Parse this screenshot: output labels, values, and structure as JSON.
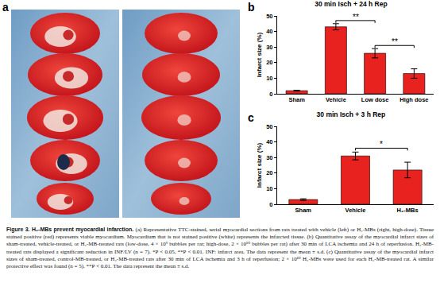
{
  "panel_labels": [
    "a",
    "b",
    "c"
  ],
  "caption": {
    "label": "Figure 3.",
    "title": "H₂-MBs prevent myocardial infarction.",
    "text": "(a) Representative TTC-stained, serial myocardial sections from rats treated with vehicle (left) or H₂-MBs (right, high-dose). Tissue stained positive (red) represents viable myocardium. Myocardium that is not stained positive (white) represents the infarcted tissue. (b) Quantitative assay of the myocardial infarct sizes of sham-treated, vehicle-treated, or H₂-MB-treated rats (low-dose, 4 × 10⁹ bubbles per rat; high-dose, 2 × 10¹⁰ bubbles per rat) after 30 min of LCA ischemia and 24 h of reperfusion. H₂-MB-treated rats displayed a significant reduction in INF/LV (n = 7). *P < 0.05, **P < 0.01. INF: infarct area. The data represent the mean ± s.d. (c) Quantitative assay of the myocardial infarct sizes of sham-treated, control-MB-treated, or H₂-MB-treated rats after 30 min of LCA ischemia and 3 h of reperfusion; 2 × 10¹⁰ H₂-MBs were used for each H₂-MB-treated rat. A similar protective effect was found (n = 5). **P < 0.01. The data represent the mean ± s.d."
  },
  "chart_data": [
    {
      "type": "bar",
      "title": "30 min Isch + 24 h Rep",
      "y_label": "Infarct size (%)",
      "categories": [
        "Sham",
        "Vehicle",
        "Low dose",
        "High dose"
      ],
      "values": [
        2,
        43,
        26,
        13
      ],
      "errors": [
        0.3,
        2,
        3,
        3
      ],
      "color": "#e8231f",
      "ylim": [
        0,
        50
      ],
      "yticks": [
        0,
        10,
        20,
        30,
        40,
        50
      ],
      "annotations": [
        {
          "text": "**",
          "from": "Vehicle",
          "to": "Low dose",
          "y": 47
        },
        {
          "text": "**",
          "from": "Low dose",
          "to": "High dose",
          "y": 31
        }
      ]
    },
    {
      "type": "bar",
      "title": "30 min Isch + 3 h Rep",
      "y_label": "Infarct size (%)",
      "categories": [
        "Sham",
        "Vehicle",
        "H₂-MBs"
      ],
      "values": [
        3,
        31,
        22
      ],
      "errors": [
        0.5,
        2.5,
        5
      ],
      "color": "#e8231f",
      "ylim": [
        0,
        50
      ],
      "yticks": [
        0,
        10,
        20,
        30,
        40,
        50
      ],
      "annotations": [
        {
          "text": "*",
          "from": "Vehicle",
          "to": "H₂-MBs",
          "y": 36
        }
      ]
    }
  ]
}
